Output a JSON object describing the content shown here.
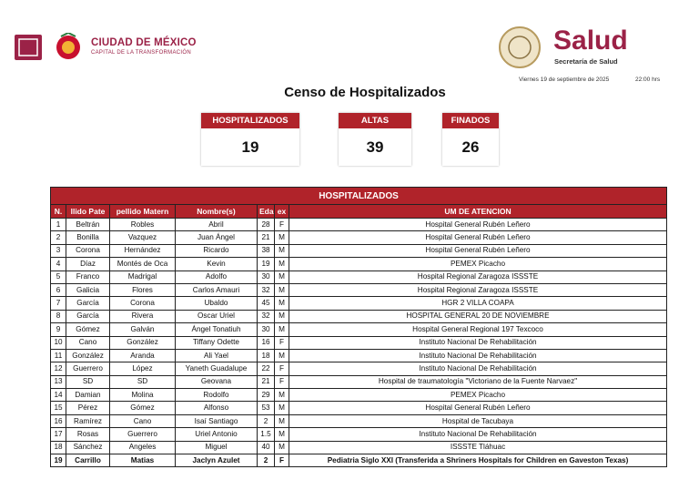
{
  "header": {
    "city": "CIUDAD DE MÉXICO",
    "city_subtitle": "CAPITAL DE LA TRANSFORMACIÓN",
    "agency": "Salud",
    "agency_subtitle": "Secretaría de Salud",
    "date": "Viernes 19 de septiembre de 2025",
    "time": "22:00 hrs"
  },
  "title": "Censo de Hospitalizados",
  "summary": [
    {
      "label": "HOSPITALIZADOS",
      "value": 19
    },
    {
      "label": "ALTAS",
      "value": 39
    },
    {
      "label": "FINADOS",
      "value": 26
    }
  ],
  "table": {
    "title": "HOSPITALIZADOS",
    "columns": [
      "N.",
      "llido Pate",
      "pellido Matern",
      "Nombre(s)",
      "Edac",
      "ex",
      "UM DE ATENCION"
    ],
    "rows": [
      [
        "1",
        "Beltrán",
        "Robles",
        "Abril",
        "28",
        "F",
        "Hospital General Rubén Leñero"
      ],
      [
        "2",
        "Bonilla",
        "Vazquez",
        "Juan Ángel",
        "21",
        "M",
        "Hospital General Rubén Leñero"
      ],
      [
        "3",
        "Corona",
        "Hernández",
        "Ricardo",
        "38",
        "M",
        "Hospital General Rubén Leñero"
      ],
      [
        "4",
        "Díaz",
        "Montés de Oca",
        "Kevin",
        "19",
        "M",
        "PEMEX Picacho"
      ],
      [
        "5",
        "Franco",
        "Madrigal",
        "Adolfo",
        "30",
        "M",
        "Hospital Regional Zaragoza ISSSTE"
      ],
      [
        "6",
        "Galicia",
        "Flores",
        "Carlos Amauri",
        "32",
        "M",
        "Hospital Regional Zaragoza ISSSTE"
      ],
      [
        "7",
        "García",
        "Corona",
        "Ubaldo",
        "45",
        "M",
        "HGR 2 VILLA COAPA"
      ],
      [
        "8",
        "García",
        "Rivera",
        "Oscar Uriel",
        "32",
        "M",
        "HOSPITAL GENERAL 20 DE NOVIEMBRE"
      ],
      [
        "9",
        "Gómez",
        "Galván",
        "Ángel Tonatiuh",
        "30",
        "M",
        "Hospital General Regional 197 Texcoco"
      ],
      [
        "10",
        "Cano",
        "González",
        "Tiffany Odette",
        "16",
        "F",
        "Instituto Nacional De Rehabilitación"
      ],
      [
        "11",
        "González",
        "Aranda",
        "Ali Yael",
        "18",
        "M",
        "Instituto Nacional De Rehabilitación"
      ],
      [
        "12",
        "Guerrero",
        "López",
        "Yaneth Guadalupe",
        "22",
        "F",
        "Instituto Nacional De Rehabilitación"
      ],
      [
        "13",
        "SD",
        "SD",
        "Geovana",
        "21",
        "F",
        "Hospital de traumatología \"Victoriano de la Fuente Narvaez\""
      ],
      [
        "14",
        "Damian",
        "Molina",
        "Rodolfo",
        "29",
        "M",
        "PEMEX Picacho"
      ],
      [
        "15",
        "Pérez",
        "Gómez",
        "Alfonso",
        "53",
        "M",
        "Hospital General Rubén Leñero"
      ],
      [
        "16",
        "Ramírez",
        "Cano",
        "Isaí Santiago",
        "2",
        "M",
        "Hospital de Tacubaya"
      ],
      [
        "17",
        "Rosas",
        "Guerrero",
        "Uriel Antonio",
        "1.5",
        "M",
        "Instituto Nacional De Rehabilitación"
      ],
      [
        "18",
        "Sánchez",
        "Angeles",
        "Miguel",
        "40",
        "M",
        "ISSSTE Tláhuac"
      ],
      [
        "19",
        "Carrillo",
        "Matias",
        "Jaclyn Azulet",
        "2",
        "F",
        "Pediatria Siglo XXI (Transferida a Shriners Hospitals for Children en Gaveston Texas)"
      ]
    ]
  }
}
